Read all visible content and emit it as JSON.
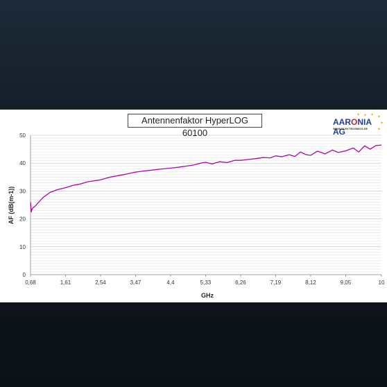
{
  "chart_data": {
    "type": "line",
    "title": "Antennenfaktor HyperLOG 60100",
    "xlabel": "GHz",
    "ylabel": "AF (dB(m-1))",
    "x_tick_labels": [
      "0,68",
      "1,61",
      "2,54",
      "3,47",
      "4,4",
      "5,33",
      "6,26",
      "7,19",
      "8,12",
      "9,05",
      "10"
    ],
    "x_ticks": [
      0.68,
      1.61,
      2.54,
      3.47,
      4.4,
      5.33,
      6.26,
      7.19,
      8.12,
      9.05,
      10
    ],
    "xlim": [
      0.68,
      10
    ],
    "ylim": [
      0,
      50
    ],
    "y_ticks": [
      0,
      10,
      20,
      30,
      40,
      50
    ],
    "grid": true,
    "legend": "none",
    "series": [
      {
        "color": "#b000b0",
        "x": [
          0.68,
          0.7,
          0.72,
          0.75,
          0.8,
          0.9,
          1.0,
          1.1,
          1.2,
          1.4,
          1.61,
          1.8,
          2.0,
          2.2,
          2.54,
          2.8,
          3.0,
          3.2,
          3.47,
          3.7,
          3.9,
          4.1,
          4.4,
          4.6,
          4.8,
          5.0,
          5.2,
          5.33,
          5.5,
          5.7,
          5.9,
          6.1,
          6.26,
          6.45,
          6.65,
          6.85,
          7.05,
          7.19,
          7.35,
          7.55,
          7.7,
          7.85,
          8.0,
          8.12,
          8.3,
          8.5,
          8.7,
          8.85,
          9.05,
          9.25,
          9.4,
          9.55,
          9.7,
          9.85,
          10.0
        ],
        "y": [
          26.0,
          22.5,
          23.5,
          24.0,
          24.5,
          26.0,
          27.5,
          28.5,
          29.5,
          30.5,
          31.2,
          32.0,
          32.5,
          33.3,
          34.0,
          35.0,
          35.5,
          36.0,
          36.8,
          37.2,
          37.5,
          37.8,
          38.2,
          38.5,
          38.9,
          39.3,
          40.0,
          40.3,
          39.7,
          40.5,
          40.2,
          41.0,
          41.0,
          41.3,
          41.6,
          42.0,
          41.9,
          42.6,
          42.3,
          43.0,
          42.4,
          44.0,
          43.0,
          42.8,
          44.3,
          43.3,
          44.7,
          43.8,
          44.4,
          45.4,
          44.0,
          46.2,
          45.0,
          46.3,
          46.5
        ]
      }
    ]
  }
}
